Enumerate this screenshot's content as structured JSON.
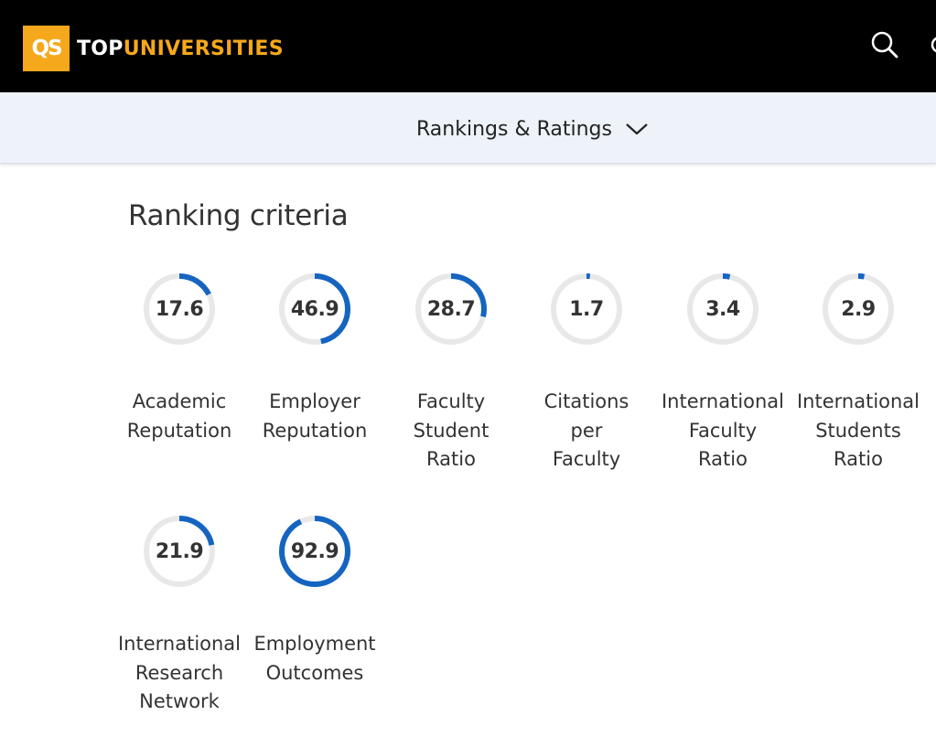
{
  "header": {
    "logo_text": "QS",
    "brand_top": "TOP",
    "brand_universities": "UNIVERSITIES",
    "icons": [
      "search-icon"
    ]
  },
  "subnav": {
    "label": "Rankings & Ratings",
    "icon": "chevron-down-icon"
  },
  "section": {
    "title": "Ranking criteria"
  },
  "colors": {
    "accent": "#1565c0",
    "track": "#e8e8e8",
    "brand_orange": "#f5a81c",
    "header_bg": "#000000",
    "subnav_bg": "#eef3f9"
  },
  "criteria": [
    {
      "value": "17.6",
      "label": "Academic\nReputation"
    },
    {
      "value": "46.9",
      "label": "Employer\nReputation"
    },
    {
      "value": "28.7",
      "label": "Faculty\nStudent\nRatio"
    },
    {
      "value": "1.7",
      "label": "Citations\nper\nFaculty"
    },
    {
      "value": "3.4",
      "label": "International\nFaculty\nRatio"
    },
    {
      "value": "2.9",
      "label": "International\nStudents\nRatio"
    },
    {
      "value": "21.9",
      "label": "International\nResearch\nNetwork"
    },
    {
      "value": "92.9",
      "label": "Employment\nOutcomes"
    }
  ]
}
